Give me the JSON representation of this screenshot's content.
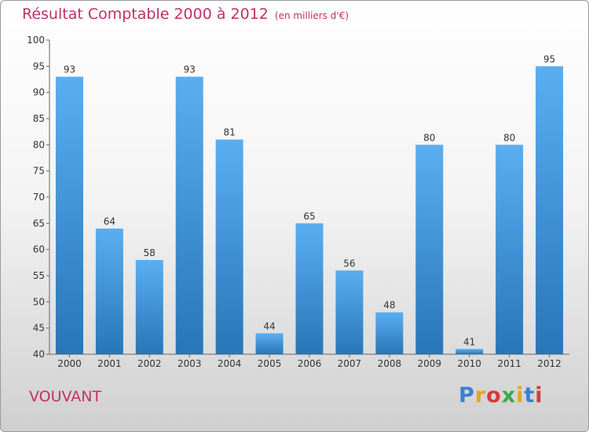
{
  "header": {
    "title": "Résultat Comptable 2000 à 2012",
    "unit_note": "(en milliers d'€)"
  },
  "footer": {
    "place": "VOUVANT",
    "logo": "Proxiti",
    "logo_colors": [
      "#3a7fd5",
      "#e8a317",
      "#d63a3a",
      "#3aa84a",
      "#e8a317",
      "#3a7fd5",
      "#d63a3a"
    ]
  },
  "colors": {
    "bar_top": "#5aaef0",
    "bar_bottom": "#2776b8",
    "text_accent": "#c0306a"
  },
  "chart_data": {
    "type": "bar",
    "categories": [
      "2000",
      "2001",
      "2002",
      "2003",
      "2004",
      "2005",
      "2006",
      "2007",
      "2008",
      "2009",
      "2010",
      "2011",
      "2012"
    ],
    "values": [
      93,
      64,
      58,
      93,
      81,
      44,
      65,
      56,
      48,
      80,
      41,
      80,
      95
    ],
    "title": "Résultat Comptable 2000 à 2012",
    "ylim": [
      40,
      100
    ],
    "yticks": [
      40,
      45,
      50,
      55,
      60,
      65,
      70,
      75,
      80,
      85,
      90,
      95,
      100
    ],
    "grid": false,
    "data_labels": true
  }
}
